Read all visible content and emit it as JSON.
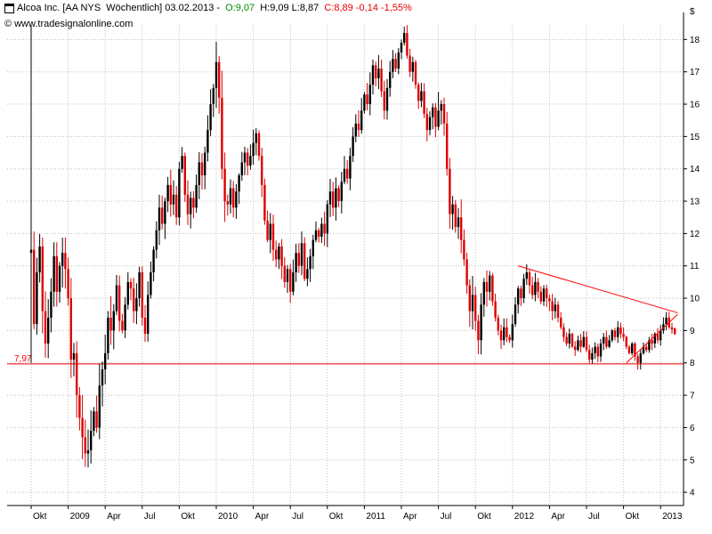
{
  "header": {
    "title": "Alcoa Inc. [AA NYS  Wöchentlich] 03.02.2013 - ",
    "open_label": "O:9,07",
    "hl_label": " H:9,09 L:8,87 ",
    "close_label": "C:8,89 -0,14 -1,55%",
    "copyright_symbol": "©",
    "watermark": "www.tradesignalonline.com",
    "currency": "$"
  },
  "colors": {
    "up_bar": "#000000",
    "down_bar": "#dd0000",
    "open_text": "#008c00",
    "close_text": "#e80000",
    "grid": "#c0c0c0",
    "axis": "#000000",
    "annotation_red": "#ff0000",
    "background": "#ffffff"
  },
  "chart_data": {
    "type": "candlestick",
    "instrument": "Alcoa Inc. (AA NYS)",
    "interval": "Wöchentlich",
    "last_bar": {
      "date": "03.02.2013",
      "open": 9.07,
      "high": 9.09,
      "low": 8.87,
      "close": 8.89,
      "change": -0.14,
      "change_pct": "-1,55%"
    },
    "title": "Alcoa Inc. [AA NYS Wöchentlich]",
    "ylabel": "$",
    "ylim": [
      3.59,
      18.45
    ],
    "grid": true,
    "y_ticks": [
      4,
      5,
      6,
      7,
      8,
      9,
      10,
      11,
      12,
      13,
      14,
      15,
      16,
      17,
      18
    ],
    "x_ticks": [
      {
        "week": 0,
        "label": "Okt"
      },
      {
        "week": 13,
        "label": "2009"
      },
      {
        "week": 26,
        "label": "Apr"
      },
      {
        "week": 39,
        "label": "Jul"
      },
      {
        "week": 52,
        "label": "Okt"
      },
      {
        "week": 65,
        "label": "2010"
      },
      {
        "week": 78,
        "label": "Apr"
      },
      {
        "week": 91,
        "label": "Jul"
      },
      {
        "week": 104,
        "label": "Okt"
      },
      {
        "week": 117,
        "label": "2011"
      },
      {
        "week": 130,
        "label": "Apr"
      },
      {
        "week": 143,
        "label": "Jul"
      },
      {
        "week": 156,
        "label": "Okt"
      },
      {
        "week": 169,
        "label": "2012"
      },
      {
        "week": 182,
        "label": "Apr"
      },
      {
        "week": 195,
        "label": "Jul"
      },
      {
        "week": 208,
        "label": "Okt"
      },
      {
        "week": 221,
        "label": "2013"
      }
    ],
    "first_bar": {
      "open": 11.4,
      "high": 18.8,
      "low": 8.0,
      "close": 11.5
    },
    "weekly_closes": [
      11.5,
      9.2,
      10.8,
      11.6,
      9.6,
      8.6,
      9.4,
      10.2,
      11.3,
      10.2,
      11.0,
      11.4,
      10.9,
      10.0,
      8.1,
      8.3,
      7.0,
      6.3,
      5.7,
      5.2,
      5.3,
      5.9,
      6.5,
      6.0,
      7.3,
      7.8,
      8.3,
      9.4,
      9.0,
      9.6,
      10.4,
      9.3,
      9.0,
      9.8,
      10.5,
      10.3,
      9.6,
      10.0,
      10.8,
      9.4,
      8.9,
      10.1,
      10.8,
      11.5,
      12.1,
      12.8,
      12.3,
      13.0,
      13.5,
      12.9,
      13.2,
      12.5,
      14.0,
      14.4,
      13.2,
      12.6,
      13.1,
      12.8,
      13.5,
      14.2,
      13.8,
      14.5,
      15.2,
      16.0,
      16.5,
      17.3,
      16.2,
      14.0,
      13.0,
      12.9,
      13.4,
      12.8,
      13.3,
      13.8,
      14.2,
      14.5,
      14.1,
      14.4,
      14.8,
      15.1,
      14.4,
      13.5,
      12.4,
      11.8,
      12.3,
      11.5,
      11.2,
      11.6,
      11.0,
      10.5,
      10.9,
      10.2,
      10.8,
      11.4,
      11.0,
      11.7,
      10.6,
      10.9,
      11.3,
      11.8,
      12.1,
      11.9,
      12.3,
      12.0,
      12.9,
      13.3,
      12.8,
      13.4,
      13.0,
      13.6,
      14.0,
      13.7,
      14.4,
      15.0,
      15.4,
      15.2,
      15.8,
      16.3,
      16.0,
      16.6,
      17.2,
      16.8,
      17.1,
      16.4,
      15.8,
      16.5,
      17.0,
      17.4,
      17.1,
      17.6,
      17.9,
      18.2,
      17.5,
      17.0,
      17.3,
      16.6,
      16.1,
      16.4,
      15.7,
      15.2,
      15.6,
      15.9,
      15.3,
      15.8,
      16.0,
      15.4,
      14.0,
      12.6,
      12.9,
      12.2,
      12.5,
      11.8,
      11.2,
      10.4,
      9.6,
      10.1,
      9.3,
      8.7,
      9.8,
      10.5,
      10.2,
      10.7,
      9.9,
      9.4,
      9.0,
      8.7,
      9.1,
      8.8,
      8.7,
      9.2,
      9.8,
      10.3,
      10.0,
      10.6,
      10.8,
      10.4,
      10.1,
      10.5,
      10.2,
      9.9,
      10.3,
      10.0,
      9.9,
      9.6,
      9.8,
      9.4,
      9.1,
      8.8,
      8.6,
      8.9,
      8.5,
      8.4,
      8.7,
      8.5,
      8.8,
      8.4,
      8.1,
      8.3,
      8.5,
      8.2,
      8.6,
      8.8,
      8.5,
      8.7,
      9.0,
      8.8,
      9.1,
      8.9,
      8.8,
      8.5,
      8.3,
      8.6,
      8.2,
      8.0,
      8.3,
      8.5,
      8.4,
      8.7,
      8.6,
      8.9,
      8.7,
      9.0,
      9.2,
      9.4,
      9.1,
      9.03,
      8.89
    ],
    "volatility_segments": [
      {
        "from": 1,
        "to": 30,
        "range": 1.2
      },
      {
        "from": 31,
        "to": 64,
        "range": 0.8
      },
      {
        "from": 65,
        "to": 68,
        "range": 1.4
      },
      {
        "from": 69,
        "to": 140,
        "range": 0.7
      },
      {
        "from": 141,
        "to": 160,
        "range": 1.0
      },
      {
        "from": 161,
        "to": 185,
        "range": 0.5
      },
      {
        "from": 186,
        "to": 226,
        "range": 0.35
      }
    ],
    "support_line": {
      "price": 7.97,
      "label": "7,97"
    },
    "trendlines": [
      {
        "from_week": 171,
        "from_price": 11.0,
        "to_week": 227,
        "to_price": 9.55
      },
      {
        "from_week": 209,
        "from_price": 8.0,
        "to_week": 227,
        "to_price": 9.5
      }
    ]
  }
}
